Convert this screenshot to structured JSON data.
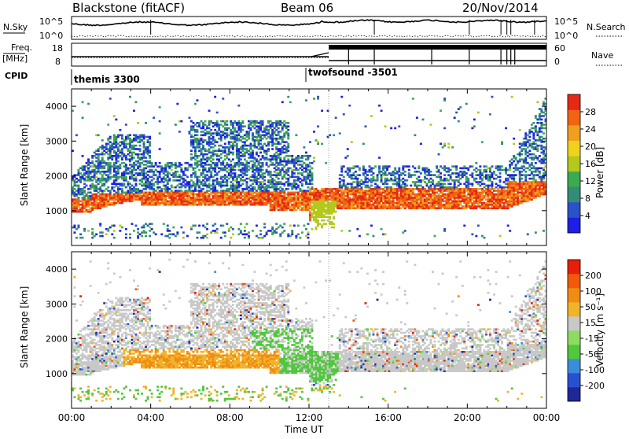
{
  "header": {
    "station": "Blackstone (fitACF)",
    "beam": "Beam 06",
    "date": "20/Nov/2014"
  },
  "sky_panel": {
    "label": "N.Sky",
    "ticks_left": [
      "10^5",
      "10^0"
    ],
    "ticks_right": [
      "10^5",
      "10^0"
    ],
    "right_label": "N.Search"
  },
  "freq_panel": {
    "label_line1": "Freq.",
    "label_line2": "[MHz]",
    "ticks_left": [
      "18",
      "8"
    ],
    "ticks_right": [
      "60",
      "0"
    ],
    "right_label": "Nave"
  },
  "cpid": {
    "label": "CPID",
    "segments": [
      {
        "name": "themis 3300",
        "start_hour": 0
      },
      {
        "name": "twofsound -3501",
        "start_hour": 13.0
      }
    ]
  },
  "colors": {
    "power_scale": [
      "#1e1ee6",
      "#2a52c8",
      "#328c78",
      "#3caa50",
      "#b4c81e",
      "#f0d21e",
      "#f0a01e",
      "#f06414",
      "#e62814"
    ],
    "velocity_scale": [
      "#1e2896",
      "#2850d2",
      "#3c8cdc",
      "#50c83c",
      "#8cdc64",
      "#c8c8c8",
      "#f0b428",
      "#f08c14",
      "#f05a0a",
      "#e61e0a"
    ]
  },
  "chart_data": [
    {
      "type": "heatmap",
      "name": "power",
      "ylabel": "Slant Range [km]",
      "y_ticks": [
        1000,
        2000,
        3000,
        4000
      ],
      "ylim": [
        0,
        4500
      ],
      "x_ticks": [
        "00:00",
        "04:00",
        "08:00",
        "12:00",
        "16:00",
        "20:00",
        "00:00"
      ],
      "xlim_hours": [
        0,
        24
      ],
      "colorbar": {
        "label": "Power [dB]",
        "ticks": [
          "28",
          "24",
          "20",
          "16",
          "12",
          "8",
          "4"
        ]
      }
    },
    {
      "type": "heatmap",
      "name": "velocity",
      "ylabel": "Slant Range [km]",
      "y_ticks": [
        1000,
        2000,
        3000,
        4000
      ],
      "ylim": [
        0,
        4500
      ],
      "x_ticks": [
        "00:00",
        "04:00",
        "08:00",
        "12:00",
        "16:00",
        "20:00",
        "00:00"
      ],
      "xlim_hours": [
        0,
        24
      ],
      "xlabel": "Time UT",
      "colorbar": {
        "label": "Velocity [m s⁻¹]",
        "ticks": [
          "200",
          "100",
          "50",
          "15",
          "-15",
          "-50",
          "-100",
          "-200"
        ]
      }
    }
  ]
}
